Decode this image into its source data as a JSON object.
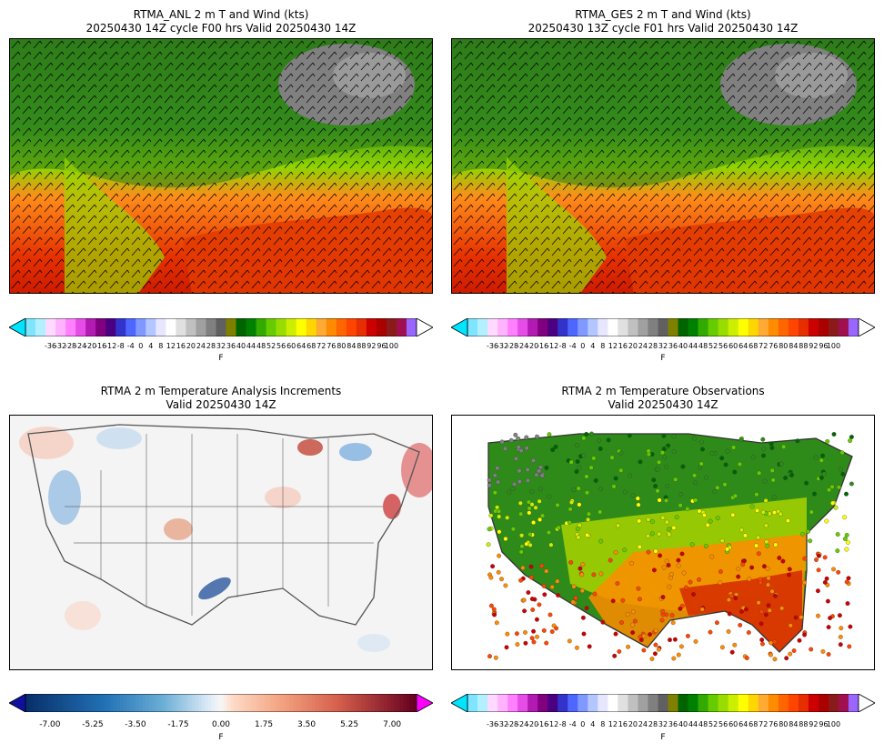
{
  "panels": {
    "tl": {
      "title1": "RTMA_ANL 2 m T and Wind (kts)",
      "title2": "20250430 14Z cycle F00 hrs Valid 20250430 14Z"
    },
    "tr": {
      "title1": "RTMA_GES 2 m T and Wind (kts)",
      "title2": "20250430 13Z cycle F01 hrs Valid 20250430 14Z"
    },
    "bl": {
      "title1": "RTMA 2 m Temperature Analysis Increments",
      "title2": "Valid 20250430 14Z"
    },
    "br": {
      "title1": "RTMA 2 m Temperature Observations",
      "title2": "Valid 20250430 14Z"
    }
  },
  "temp_colorbar": {
    "unit": "F",
    "ticks": [
      "-36",
      "-32",
      "-28",
      "-24",
      "-20",
      "-16",
      "-12",
      "-8",
      "-4",
      "0",
      "4",
      "8",
      "12",
      "16",
      "20",
      "24",
      "28",
      "32",
      "36",
      "40",
      "44",
      "48",
      "52",
      "56",
      "60",
      "64",
      "68",
      "72",
      "76",
      "80",
      "84",
      "88",
      "92",
      "96",
      "100"
    ],
    "colors": [
      "#7fe5ff",
      "#b3f0ff",
      "#ffd9ff",
      "#ffb3ff",
      "#ff80ff",
      "#e64de6",
      "#b31ab3",
      "#800080",
      "#4b0082",
      "#3333cc",
      "#4d66ff",
      "#8099ff",
      "#b3c6ff",
      "#e6e6ff",
      "#ffffff",
      "#e0e0e0",
      "#c0c0c0",
      "#a0a0a0",
      "#808080",
      "#606060",
      "#808000",
      "#006400",
      "#008000",
      "#33aa00",
      "#66cc00",
      "#99dd00",
      "#ccee00",
      "#ffff00",
      "#ffd700",
      "#ffaa33",
      "#ff8c00",
      "#ff6600",
      "#ff4500",
      "#e62e00",
      "#cc0000",
      "#aa0000",
      "#8b1a1a",
      "#a01050",
      "#9966ff"
    ],
    "under_color": "#00e5ff",
    "over_color": "#ffffff"
  },
  "incr_colorbar": {
    "unit": "F",
    "ticks": [
      "-7.00",
      "-5.25",
      "-3.50",
      "-1.75",
      "0.00",
      "1.75",
      "3.50",
      "5.25",
      "7.00"
    ],
    "under_color": "#1010a0",
    "over_color": "#ff00ff"
  }
}
